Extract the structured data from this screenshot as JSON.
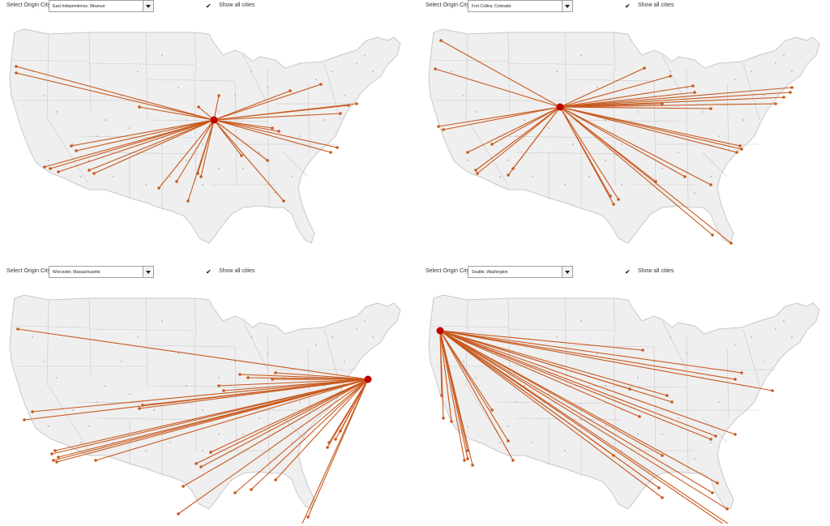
{
  "controls": {
    "select_label": "Select Origin City",
    "show_all_label": "Show all cities",
    "show_all_checked": true,
    "check_glyph": "✔"
  },
  "colors": {
    "land": "#efefef",
    "state_border": "#c8c8c8",
    "route": "#c8581c",
    "origin": "#c00000",
    "city_dot": "#9a9a9a"
  },
  "panels": [
    {
      "origin": "East Independence, Missouri"
    },
    {
      "origin": "Fort Collins, Colorado"
    },
    {
      "origin": "Worcester, Massachusetts"
    },
    {
      "origin": "Seattle, Washington"
    }
  ]
}
